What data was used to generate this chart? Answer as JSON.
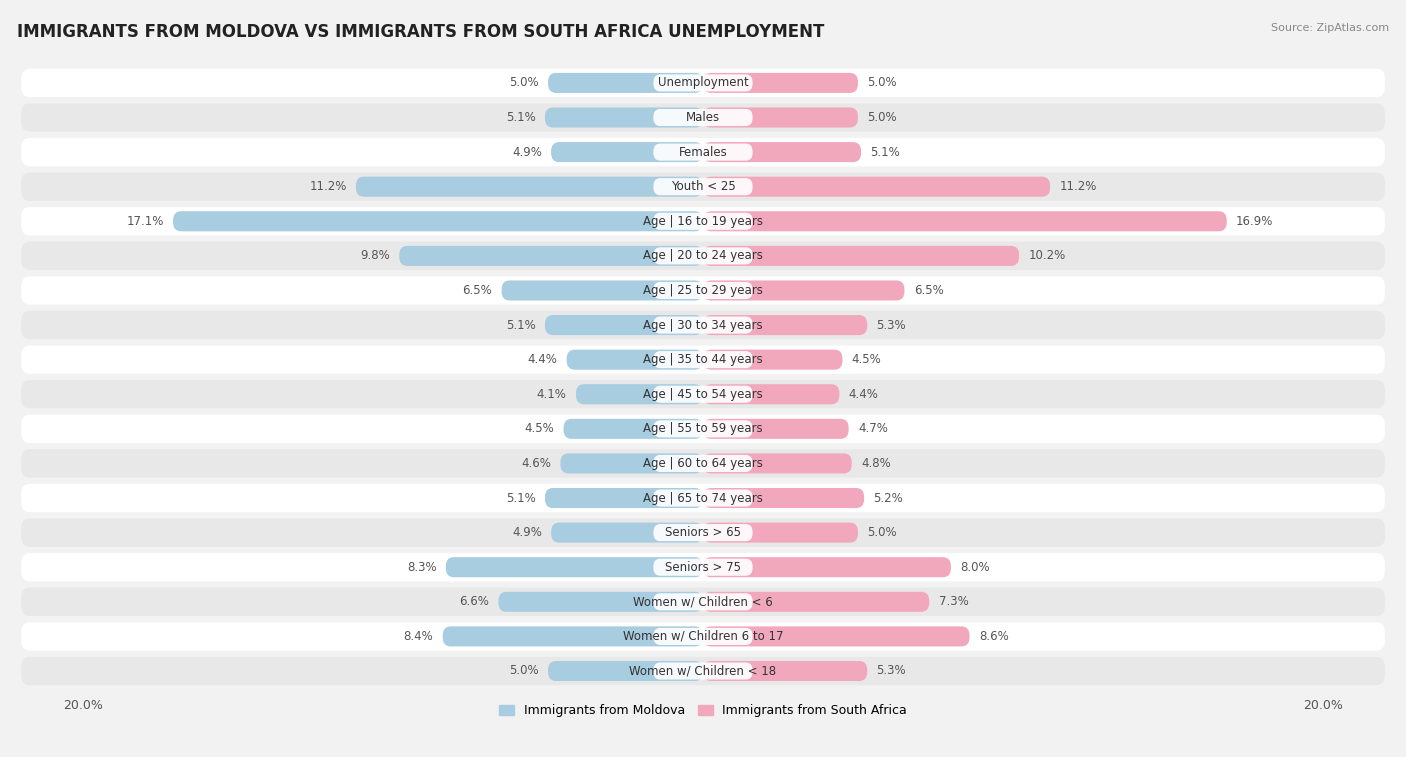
{
  "title": "IMMIGRANTS FROM MOLDOVA VS IMMIGRANTS FROM SOUTH AFRICA UNEMPLOYMENT",
  "source": "Source: ZipAtlas.com",
  "categories": [
    "Unemployment",
    "Males",
    "Females",
    "Youth < 25",
    "Age | 16 to 19 years",
    "Age | 20 to 24 years",
    "Age | 25 to 29 years",
    "Age | 30 to 34 years",
    "Age | 35 to 44 years",
    "Age | 45 to 54 years",
    "Age | 55 to 59 years",
    "Age | 60 to 64 years",
    "Age | 65 to 74 years",
    "Seniors > 65",
    "Seniors > 75",
    "Women w/ Children < 6",
    "Women w/ Children 6 to 17",
    "Women w/ Children < 18"
  ],
  "moldova_values": [
    5.0,
    5.1,
    4.9,
    11.2,
    17.1,
    9.8,
    6.5,
    5.1,
    4.4,
    4.1,
    4.5,
    4.6,
    5.1,
    4.9,
    8.3,
    6.6,
    8.4,
    5.0
  ],
  "south_africa_values": [
    5.0,
    5.0,
    5.1,
    11.2,
    16.9,
    10.2,
    6.5,
    5.3,
    4.5,
    4.4,
    4.7,
    4.8,
    5.2,
    5.0,
    8.0,
    7.3,
    8.6,
    5.3
  ],
  "moldova_color": "#a8cce0",
  "south_africa_color": "#f2a8bc",
  "max_val": 20.0,
  "background_color": "#f2f2f2",
  "row_color_even": "#ffffff",
  "row_color_odd": "#e8e8e8",
  "title_fontsize": 12,
  "label_fontsize": 8.5,
  "value_fontsize": 8.5,
  "tick_fontsize": 9
}
